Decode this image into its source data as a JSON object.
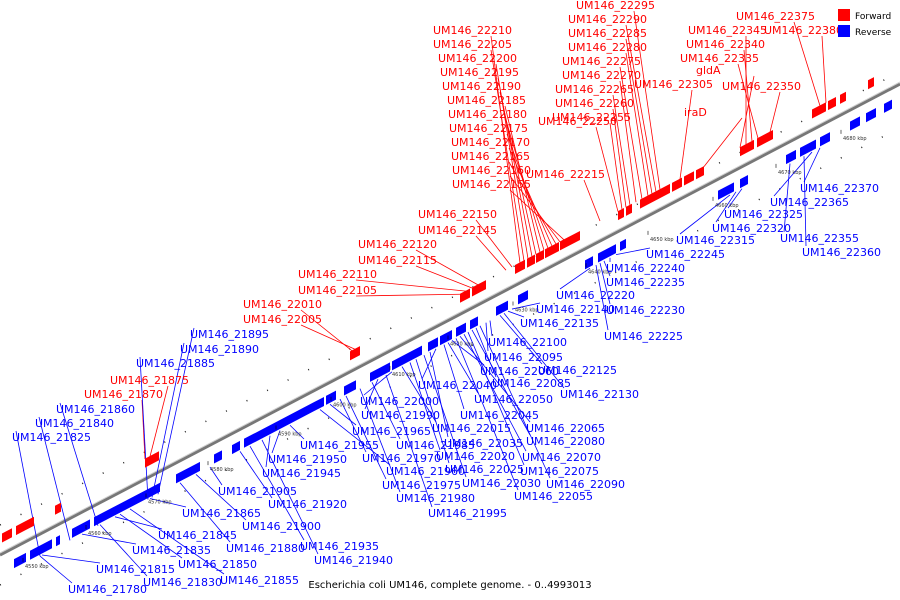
{
  "colors": {
    "forward": "#ff0000",
    "reverse": "#0000ff",
    "backbone": "#888888",
    "label_line_fwd": "#ff0000",
    "label_line_rev": "#0000ff"
  },
  "legend": {
    "forward": "Forward",
    "reverse": "Reverse"
  },
  "caption": "Escherichia coli UM146, complete genome. - 0..4993013",
  "ticks": [
    "4550 kbp",
    "4560 kbp",
    "4570 kbp",
    "4580 kbp",
    "4590 kbp",
    "4600 kbp",
    "4610 kbp",
    "4620 kbp",
    "4630 kbp",
    "4640 kbp",
    "4650 kbp",
    "4660 kbp",
    "4670 kbp",
    "4680 kbp"
  ],
  "forward_labels": [
    "UM146_22210",
    "UM146_22205",
    "UM146_22200",
    "UM146_22195",
    "UM146_22190",
    "UM146_22185",
    "UM146_22180",
    "UM146_22175",
    "UM146_22170",
    "UM146_22165",
    "UM146_22160",
    "UM146_22155",
    "UM146_22150",
    "UM146_22145",
    "UM146_22120",
    "UM146_22115",
    "UM146_22110",
    "UM146_22105",
    "UM146_22010",
    "UM146_22005",
    "UM146_21875",
    "UM146_21870",
    "UM146_22295",
    "UM146_22290",
    "UM146_22285",
    "UM146_22280",
    "UM146_22275",
    "UM146_22270",
    "UM146_22265",
    "UM146_22260",
    "UM146_22255",
    "UM146_22250",
    "UM146_22215",
    "UM146_22305",
    "iraD",
    "UM146_22375",
    "UM146_22345",
    "UM146_22340",
    "UM146_22335",
    "gldA",
    "UM146_22380",
    "UM146_22350"
  ],
  "reverse_labels": [
    "UM146_21895",
    "UM146_21890",
    "UM146_21885",
    "UM146_21860",
    "UM146_21840",
    "UM146_21825",
    "UM146_21780",
    "UM146_21815",
    "UM146_21830",
    "UM146_21835",
    "UM146_21845",
    "UM146_21850",
    "UM146_21855",
    "UM146_21865",
    "UM146_21880",
    "UM146_21900",
    "UM146_21905",
    "UM146_21920",
    "UM146_21935",
    "UM146_21940",
    "UM146_21945",
    "UM146_21950",
    "UM146_21955",
    "UM146_21960",
    "UM146_21965",
    "UM146_21970",
    "UM146_21975",
    "UM146_21980",
    "UM146_21985",
    "UM146_21990",
    "UM146_21995",
    "UM146_22000",
    "UM146_22015",
    "UM146_22020",
    "UM146_22025",
    "UM146_22030",
    "UM146_22035",
    "UM146_22040",
    "UM146_22045",
    "UM146_22050",
    "UM146_22055",
    "UM146_22060",
    "UM146_22065",
    "UM146_22070",
    "UM146_22075",
    "UM146_22080",
    "UM146_22085",
    "UM146_22090",
    "UM146_22095",
    "UM146_22100",
    "UM146_22125",
    "UM146_22130",
    "UM146_22135",
    "UM146_22140",
    "UM146_22220",
    "UM146_22225",
    "UM146_22230",
    "UM146_22235",
    "UM146_22240",
    "UM146_22245",
    "UM146_22315",
    "UM146_22320",
    "UM146_22325",
    "UM146_22355",
    "UM146_22360",
    "UM146_22365",
    "UM146_22370"
  ]
}
